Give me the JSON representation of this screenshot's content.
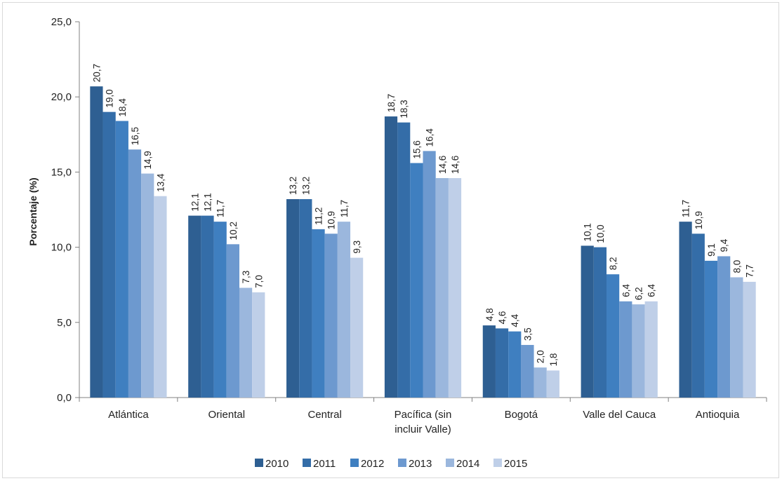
{
  "chart_data": {
    "type": "bar",
    "title": "",
    "xlabel": "",
    "ylabel": "Porcentaje (%)",
    "ylim": [
      0,
      25
    ],
    "yticks": [
      "0,0",
      "5,0",
      "10,0",
      "15,0",
      "20,0",
      "25,0"
    ],
    "grid": false,
    "legend_position": "bottom",
    "categories": [
      [
        "Atlántica"
      ],
      [
        "Oriental"
      ],
      [
        "Central"
      ],
      [
        "Pacífica (sin",
        "incluir Valle)"
      ],
      [
        "Bogotá"
      ],
      [
        "Valle del Cauca"
      ],
      [
        "Antioquia"
      ]
    ],
    "series": [
      {
        "name": "2010",
        "color": "#2e5f92",
        "values": [
          20.7,
          12.1,
          13.2,
          18.7,
          4.8,
          10.1,
          11.7
        ],
        "labels": [
          "20,7",
          "12,1",
          "13,2",
          "18,7",
          "4,8",
          "10,1",
          "11,7"
        ]
      },
      {
        "name": "2011",
        "color": "#346da8",
        "values": [
          19.0,
          12.1,
          13.2,
          18.3,
          4.6,
          10.0,
          10.9
        ],
        "labels": [
          "19,0",
          "12,1",
          "13,2",
          "18,3",
          "4,6",
          "10,0",
          "10,9"
        ]
      },
      {
        "name": "2012",
        "color": "#3f7fc0",
        "values": [
          18.4,
          11.7,
          11.2,
          15.6,
          4.4,
          8.2,
          9.1
        ],
        "labels": [
          "18,4",
          "11,7",
          "11,2",
          "15,6",
          "4,4",
          "8,2",
          "9,1"
        ]
      },
      {
        "name": "2013",
        "color": "#6d99cf",
        "values": [
          16.5,
          10.2,
          10.9,
          16.4,
          3.5,
          6.4,
          9.4
        ],
        "labels": [
          "16,5",
          "10,2",
          "10,9",
          "16,4",
          "3,5",
          "6,4",
          "9,4"
        ]
      },
      {
        "name": "2014",
        "color": "#9bb7dd",
        "values": [
          14.9,
          7.3,
          11.7,
          14.6,
          2.0,
          6.2,
          8.0
        ],
        "labels": [
          "14,9",
          "7,3",
          "11,7",
          "14,6",
          "2,0",
          "6,2",
          "8,0"
        ]
      },
      {
        "name": "2015",
        "color": "#bfcfe8",
        "values": [
          13.4,
          7.0,
          9.3,
          14.6,
          1.8,
          6.4,
          7.7
        ],
        "labels": [
          "13,4",
          "7,0",
          "9,3",
          "14,6",
          "1,8",
          "6,4",
          "7,7"
        ]
      }
    ]
  }
}
